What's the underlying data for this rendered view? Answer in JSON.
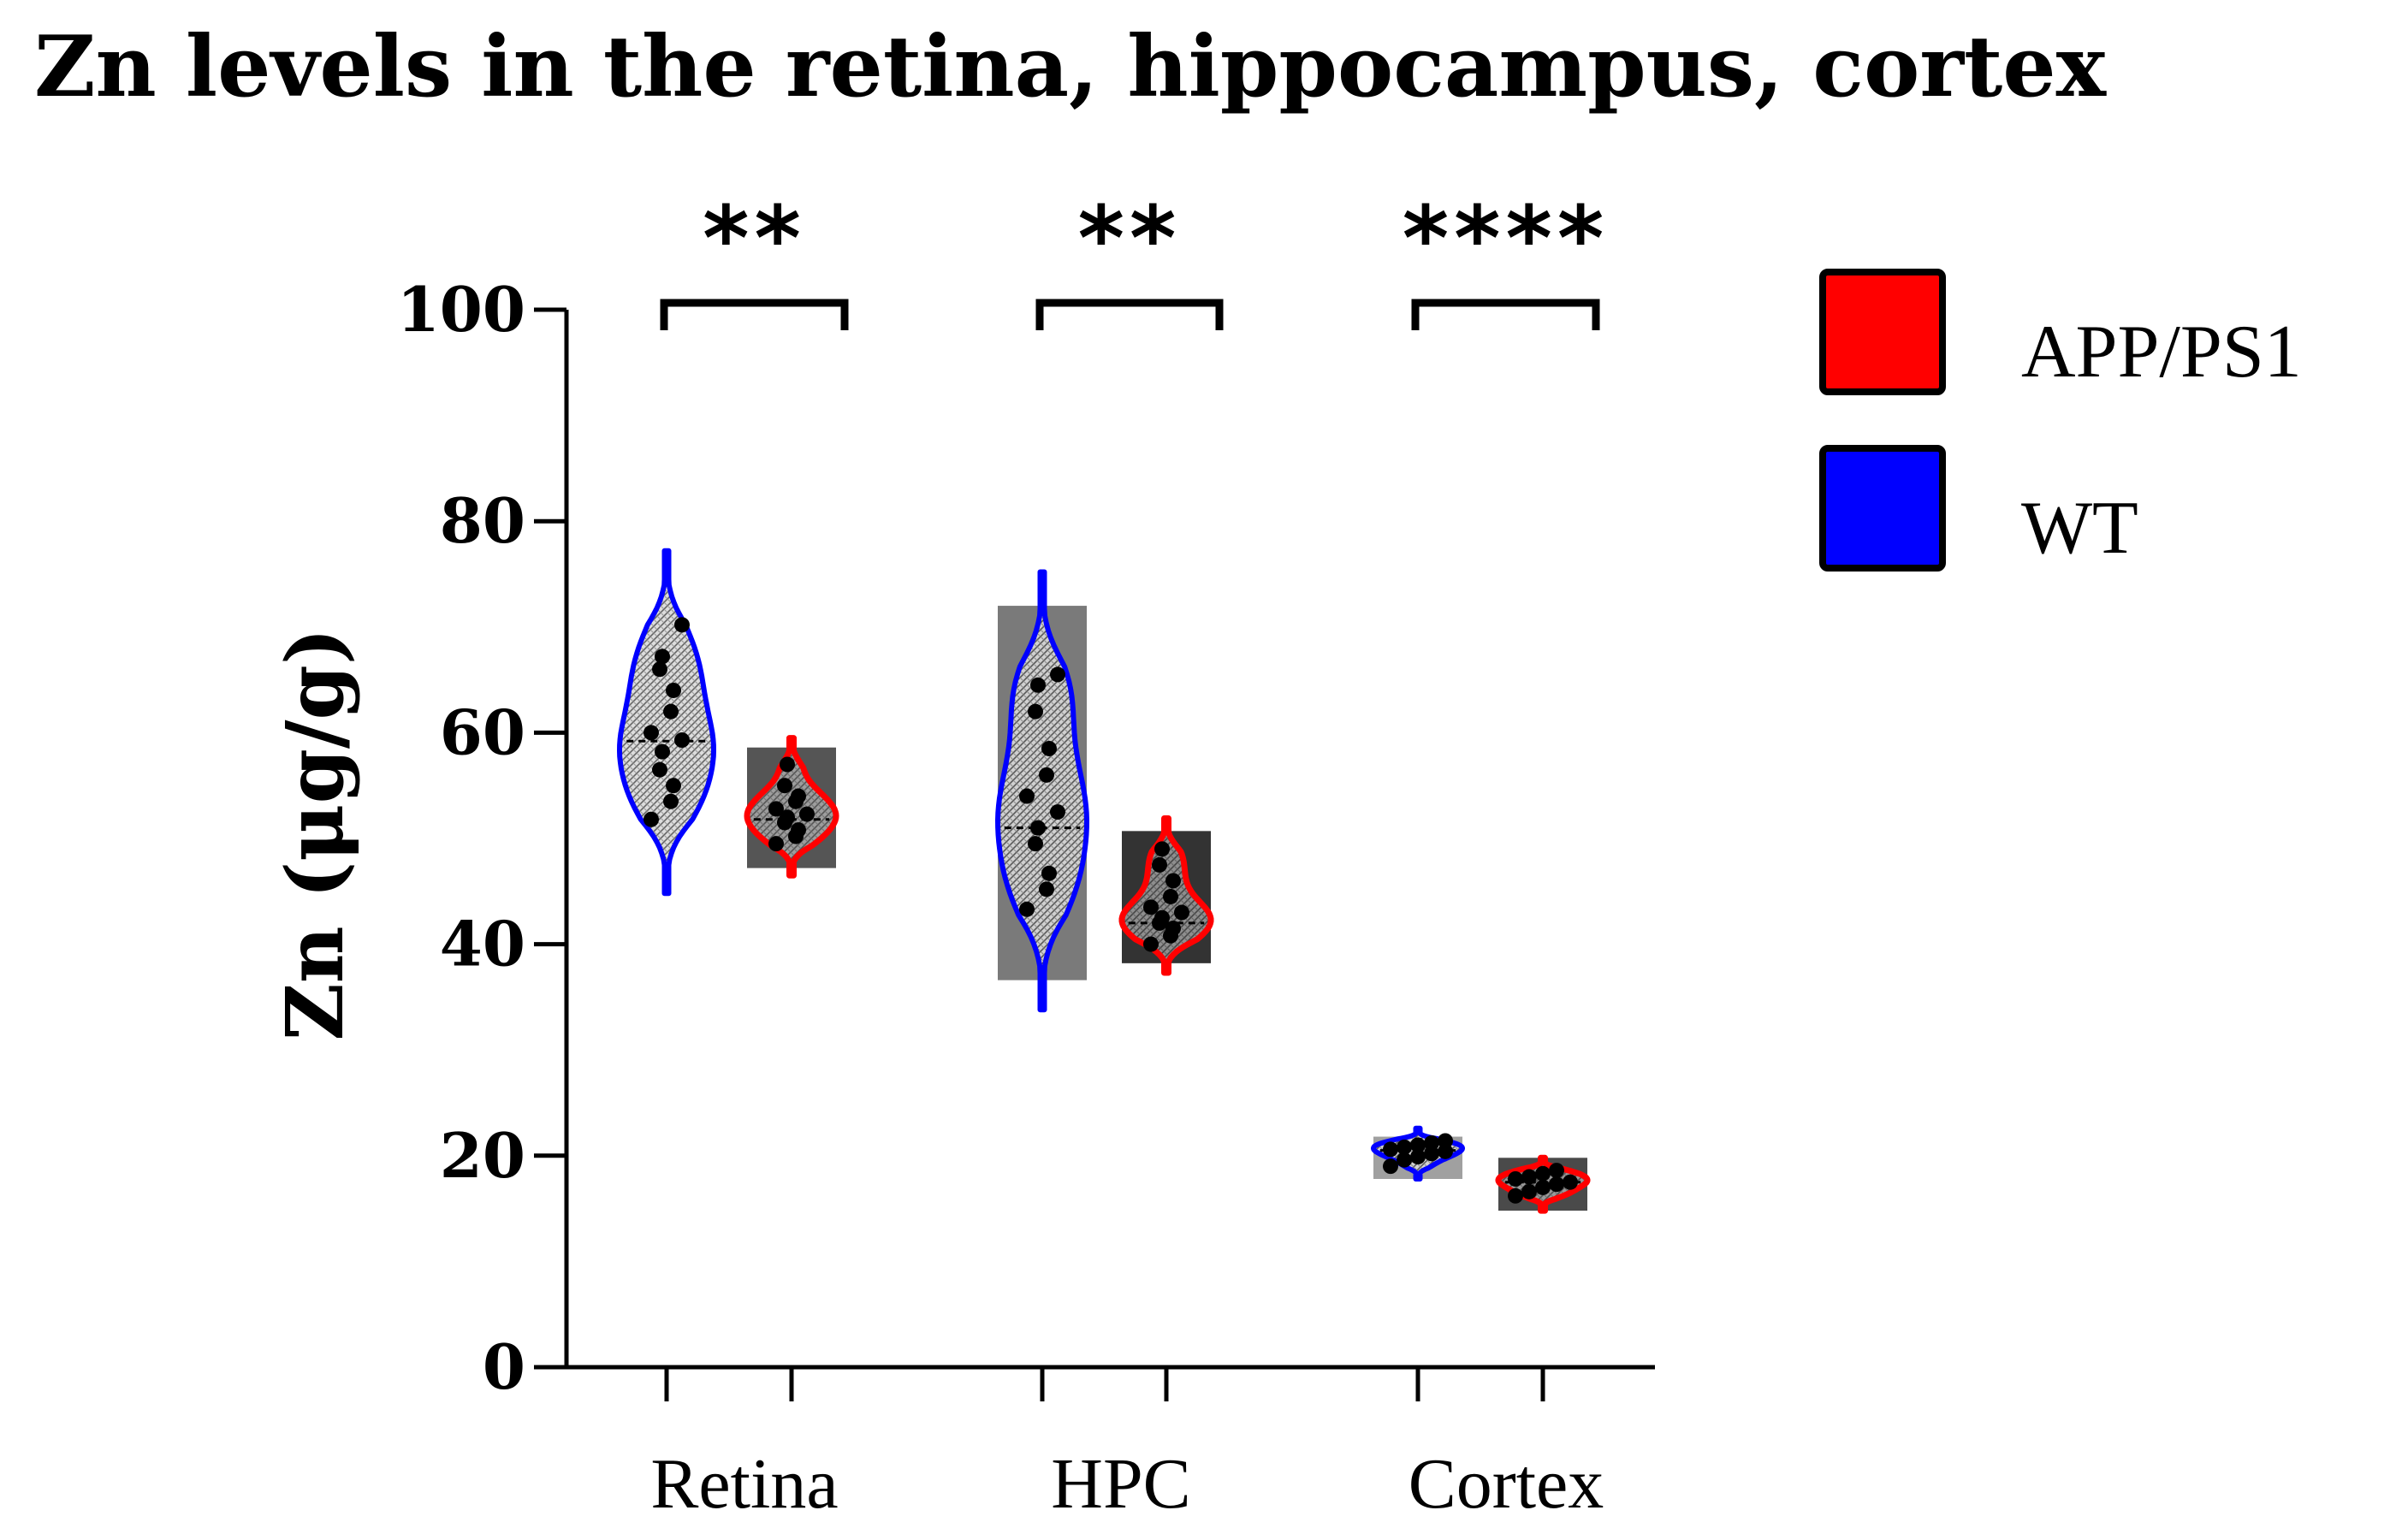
{
  "chart_data": {
    "type": "violin",
    "title": "Zn levels in the retina, hippocampus, cortex",
    "ylabel": "Zn (μg/g)",
    "xlabel": "",
    "ylim": [
      0,
      100
    ],
    "yticks": [
      0,
      20,
      40,
      60,
      80,
      100
    ],
    "categories": [
      "Retina",
      "HPC",
      "Cortex"
    ],
    "legend_position": "right",
    "series": [
      {
        "name": "WT",
        "color": "#0000ff",
        "groups": [
          {
            "category": "Retina",
            "violin_range": [
              44.8,
              77.2
            ],
            "median": 59.2,
            "bar_range": null,
            "points": [
              51.8,
              53.5,
              55.0,
              56.5,
              58.2,
              59.3,
              60.0,
              62.0,
              64.0,
              66.0,
              67.2,
              70.2
            ]
          },
          {
            "category": "HPC",
            "violin_range": [
              33.8,
              75.2
            ],
            "median": 51.0,
            "bar_range": [
              36.6,
              72.0
            ],
            "points": [
              43.3,
              45.2,
              46.7,
              49.5,
              51.0,
              52.5,
              54.0,
              56.0,
              58.5,
              62.0,
              64.5,
              65.5
            ]
          },
          {
            "category": "Cortex",
            "violin_range": [
              17.8,
              22.6
            ],
            "median": 20.5,
            "bar_range": [
              17.8,
              21.8
            ],
            "points": [
              19.0,
              19.6,
              19.9,
              20.2,
              20.4,
              20.6,
              20.8,
              21.0,
              21.2,
              21.4
            ]
          }
        ]
      },
      {
        "name": "APP/PS1",
        "color": "#ff0000",
        "groups": [
          {
            "category": "Retina",
            "violin_range": [
              46.5,
              59.5
            ],
            "median": 51.8,
            "bar_range": [
              47.2,
              58.6
            ],
            "points": [
              49.5,
              50.2,
              50.8,
              51.5,
              52.0,
              52.3,
              52.8,
              53.5,
              54.0,
              55.0,
              57.0
            ]
          },
          {
            "category": "HPC",
            "violin_range": [
              37.3,
              51.9
            ],
            "median": 42.0,
            "bar_range": [
              38.2,
              50.7
            ],
            "points": [
              40.0,
              40.8,
              41.5,
              42.0,
              42.5,
              43.0,
              43.5,
              44.5,
              46.0,
              47.5,
              49.0
            ]
          },
          {
            "category": "Cortex",
            "violin_range": [
              14.8,
              19.8
            ],
            "median": 17.5,
            "bar_range": [
              14.8,
              19.8
            ],
            "points": [
              16.2,
              16.6,
              17.0,
              17.3,
              17.5,
              17.8,
              18.0,
              18.3,
              18.6
            ]
          }
        ]
      }
    ],
    "legend": [
      "APP/PS1",
      "WT"
    ],
    "significance": [
      {
        "category": "Retina",
        "label": "**"
      },
      {
        "category": "HPC",
        "label": "**"
      },
      {
        "category": "Cortex",
        "label": "****"
      }
    ]
  }
}
